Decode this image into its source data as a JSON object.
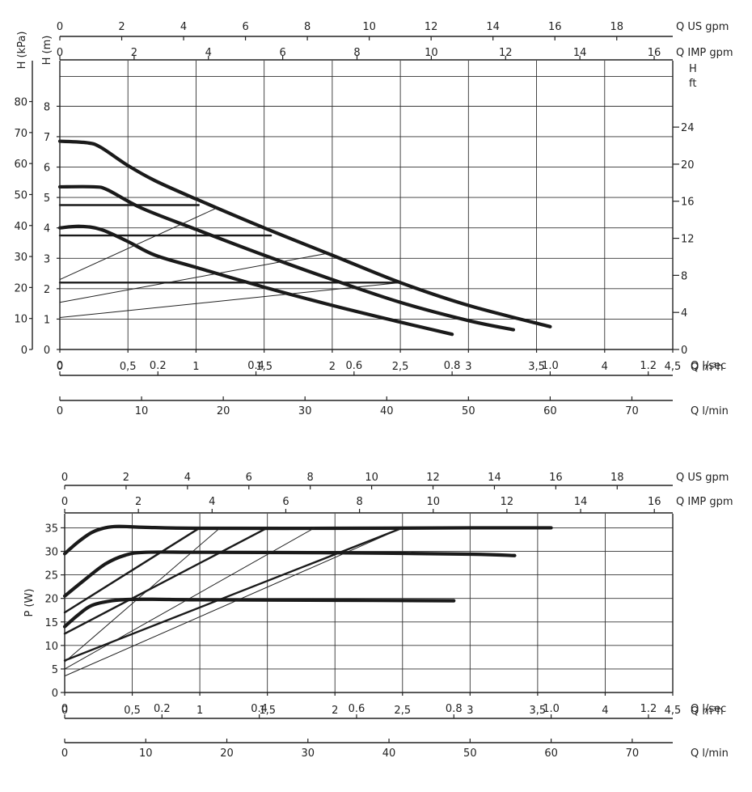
{
  "chart_data": [
    {
      "type": "line",
      "title": "",
      "xlabel": "Q m³h",
      "ylabel_left_kpa": "H (kPa)",
      "ylabel_left_m": "H (m)",
      "ylabel_right": "H ft",
      "xlim": [
        0,
        4.5
      ],
      "ylim_m": [
        0,
        9.5
      ],
      "grid": true,
      "x_ticks": [
        "0",
        "0,5",
        "1",
        "1,5",
        "2",
        "2,5",
        "3",
        "3,5",
        "4",
        "4,5"
      ],
      "y_ticks_m": [
        "0",
        "1",
        "2",
        "3",
        "4",
        "5",
        "6",
        "7",
        "8"
      ],
      "y_ticks_kpa": [
        "0",
        "10",
        "20",
        "30",
        "40",
        "50",
        "60",
        "70",
        "80"
      ],
      "y_ticks_ft": [
        "0",
        "4",
        "8",
        "12",
        "16",
        "20",
        "24"
      ],
      "top_axes": [
        {
          "label": "Q US gpm",
          "ticks": [
            "0",
            "2",
            "4",
            "6",
            "8",
            "10",
            "12",
            "14",
            "16",
            "18"
          ],
          "max": 19.81
        },
        {
          "label": "Q IMP gpm",
          "ticks": [
            "0",
            "2",
            "4",
            "6",
            "8",
            "10",
            "12",
            "14",
            "16"
          ],
          "max": 16.5
        }
      ],
      "bottom_axes": [
        {
          "label": "Q l/sec",
          "ticks": [
            "0",
            "0.2",
            "0.4",
            "0.6",
            "0.8",
            "1.0",
            "1.2"
          ],
          "max": 1.25
        },
        {
          "label": "Q l/min",
          "ticks": [
            "0",
            "10",
            "20",
            "30",
            "40",
            "50",
            "60",
            "70"
          ],
          "max": 75
        }
      ],
      "series": [
        {
          "style": "max-curve",
          "x": [
            0,
            0.2,
            0.3,
            0.5,
            0.7,
            1.0,
            1.5,
            2.0,
            2.5,
            3.0,
            3.6
          ],
          "y": [
            6.85,
            6.8,
            6.65,
            6.05,
            5.55,
            4.95,
            4.0,
            3.1,
            2.2,
            1.45,
            0.75
          ]
        },
        {
          "style": "max-curve",
          "x": [
            0,
            0.25,
            0.35,
            0.6,
            1.0,
            1.5,
            2.0,
            2.5,
            3.0,
            3.33
          ],
          "y": [
            5.35,
            5.35,
            5.25,
            4.65,
            3.95,
            3.1,
            2.3,
            1.55,
            0.95,
            0.65
          ]
        },
        {
          "style": "max-curve",
          "x": [
            0,
            0.15,
            0.3,
            0.5,
            0.7,
            1.0,
            1.5,
            2.0,
            2.5,
            2.88
          ],
          "y": [
            4.0,
            4.05,
            3.95,
            3.55,
            3.1,
            2.7,
            2.05,
            1.45,
            0.9,
            0.5
          ]
        },
        {
          "style": "constant",
          "x": [
            0,
            1.02
          ],
          "y": [
            4.75,
            4.75
          ]
        },
        {
          "style": "constant",
          "x": [
            0,
            1.55
          ],
          "y": [
            3.75,
            3.75
          ]
        },
        {
          "style": "constant",
          "x": [
            0,
            2.5
          ],
          "y": [
            2.2,
            2.2
          ]
        },
        {
          "style": "proportional",
          "x": [
            0,
            1.15
          ],
          "y": [
            2.3,
            4.65
          ]
        },
        {
          "style": "proportional",
          "x": [
            0,
            1.95
          ],
          "y": [
            1.55,
            3.15
          ]
        },
        {
          "style": "proportional",
          "x": [
            0,
            2.5
          ],
          "y": [
            1.05,
            2.2
          ]
        }
      ]
    },
    {
      "type": "line",
      "title": "",
      "xlabel": "Q m³h",
      "ylabel": "P (W)",
      "xlim": [
        0,
        4.5
      ],
      "ylim": [
        0,
        38
      ],
      "grid": true,
      "x_ticks": [
        "0",
        "0,5",
        "1",
        "1,5",
        "2",
        "2,5",
        "3",
        "3,5",
        "4",
        "4,5"
      ],
      "y_ticks": [
        "0",
        "5",
        "10",
        "15",
        "20",
        "25",
        "30",
        "35"
      ],
      "top_axes": [
        {
          "label": "Q US gpm",
          "ticks": [
            "0",
            "2",
            "4",
            "6",
            "8",
            "10",
            "12",
            "14",
            "16",
            "18"
          ],
          "max": 19.81
        },
        {
          "label": "Q IMP gpm",
          "ticks": [
            "0",
            "2",
            "4",
            "6",
            "8",
            "10",
            "12",
            "14",
            "16"
          ],
          "max": 16.5
        }
      ],
      "bottom_axes": [
        {
          "label": "Q l/sec",
          "ticks": [
            "0",
            "0.2",
            "0.4",
            "0.6",
            "0.8",
            "1.0",
            "1.2"
          ],
          "max": 1.25
        },
        {
          "label": "Q l/min",
          "ticks": [
            "0",
            "10",
            "20",
            "30",
            "40",
            "50",
            "60",
            "70"
          ],
          "max": 75
        }
      ],
      "series": [
        {
          "style": "max-curve",
          "x": [
            0,
            0.1,
            0.2,
            0.3,
            0.4,
            0.6,
            1.0,
            2.0,
            3.0,
            3.6
          ],
          "y": [
            29.5,
            32,
            34,
            35,
            35.3,
            35.1,
            34.9,
            34.9,
            35,
            35
          ]
        },
        {
          "style": "max-curve",
          "x": [
            0,
            0.15,
            0.3,
            0.45,
            0.6,
            1.0,
            2.0,
            3.0,
            3.33
          ],
          "y": [
            20.5,
            24,
            27.3,
            29.2,
            29.8,
            29.8,
            29.7,
            29.4,
            29.1
          ]
        },
        {
          "style": "max-curve",
          "x": [
            0,
            0.1,
            0.2,
            0.35,
            0.5,
            0.7,
            1.0,
            2.0,
            2.88
          ],
          "y": [
            14,
            16.5,
            18.5,
            19.5,
            19.8,
            19.8,
            19.7,
            19.6,
            19.5
          ]
        },
        {
          "style": "constant",
          "x": [
            0,
            1.0
          ],
          "y": [
            17,
            35
          ]
        },
        {
          "style": "constant",
          "x": [
            0,
            1.5
          ],
          "y": [
            12.5,
            35
          ]
        },
        {
          "style": "constant",
          "x": [
            0,
            2.5
          ],
          "y": [
            6.8,
            35
          ]
        },
        {
          "style": "proportional",
          "x": [
            0,
            1.15
          ],
          "y": [
            6.5,
            35
          ]
        },
        {
          "style": "proportional",
          "x": [
            0,
            1.85
          ],
          "y": [
            5,
            35
          ]
        },
        {
          "style": "proportional",
          "x": [
            0,
            2.5
          ],
          "y": [
            3.5,
            35
          ]
        }
      ]
    }
  ]
}
